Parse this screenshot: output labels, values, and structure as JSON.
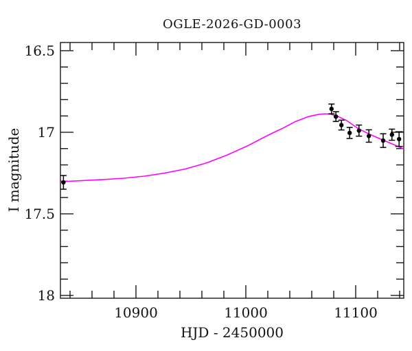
{
  "chart_data": {
    "type": "scatter",
    "title": "OGLE-2026-GD-0003",
    "xlabel": "HJD - 2450000",
    "ylabel": "I magnitude",
    "xlim": [
      10831.25,
      11143.75
    ],
    "ylim": [
      16.45,
      18.017
    ],
    "y_axis_inverted": true,
    "grid": false,
    "legend": "none",
    "x_major_ticks": [
      {
        "v": 10900,
        "label": "10900"
      },
      {
        "v": 11000,
        "label": "11000"
      },
      {
        "v": 11100,
        "label": "11100"
      }
    ],
    "x_minor_step": 20,
    "y_major_ticks": [
      {
        "v": 16.5,
        "label": "16.5"
      },
      {
        "v": 17,
        "label": "17"
      },
      {
        "v": 17.5,
        "label": "17.5"
      },
      {
        "v": 18,
        "label": "18"
      }
    ],
    "y_minor_step": 0.1,
    "series": [
      {
        "name": "microlensing-model",
        "type": "line",
        "color": "#ff00ff",
        "points": [
          [
            10831.3,
            17.303
          ],
          [
            10851.3,
            17.296
          ],
          [
            10870.0,
            17.29
          ],
          [
            10888.8,
            17.282
          ],
          [
            10907.5,
            17.269
          ],
          [
            10926.3,
            17.25
          ],
          [
            10945.0,
            17.225
          ],
          [
            10963.8,
            17.189
          ],
          [
            10982.5,
            17.141
          ],
          [
            11001.3,
            17.084
          ],
          [
            11020.0,
            17.019
          ],
          [
            11032.5,
            16.979
          ],
          [
            11045.0,
            16.935
          ],
          [
            11057.5,
            16.903
          ],
          [
            11066.9,
            16.89
          ],
          [
            11071.9,
            16.887
          ],
          [
            11076.9,
            16.889
          ],
          [
            11083.8,
            16.903
          ],
          [
            11091.9,
            16.929
          ],
          [
            11101.3,
            16.973
          ],
          [
            11110.6,
            17.006
          ],
          [
            11120.0,
            17.034
          ],
          [
            11129.4,
            17.061
          ],
          [
            11137.5,
            17.084
          ],
          [
            11143.8,
            17.103
          ]
        ]
      },
      {
        "name": "observations",
        "type": "scatter-errorbar",
        "color": "#000000",
        "points": [
          {
            "x": 10834.0,
            "y": 17.307,
            "err": 0.042
          },
          {
            "x": 11078.0,
            "y": 16.857,
            "err": 0.03
          },
          {
            "x": 11082.0,
            "y": 16.904,
            "err": 0.03
          },
          {
            "x": 11087.0,
            "y": 16.956,
            "err": 0.03
          },
          {
            "x": 11094.5,
            "y": 17.004,
            "err": 0.034
          },
          {
            "x": 11103.0,
            "y": 16.99,
            "err": 0.034
          },
          {
            "x": 11112.0,
            "y": 17.023,
            "err": 0.038
          },
          {
            "x": 11125.0,
            "y": 17.051,
            "err": 0.042
          },
          {
            "x": 11133.0,
            "y": 17.015,
            "err": 0.034
          },
          {
            "x": 11139.5,
            "y": 17.042,
            "err": 0.045,
            "capw": 5.5
          }
        ]
      }
    ]
  },
  "colors": {
    "background": "#ffffff",
    "axis": "#161616",
    "text": "#111111",
    "model_curve": "#ff00ff",
    "data_points": "#000000"
  }
}
